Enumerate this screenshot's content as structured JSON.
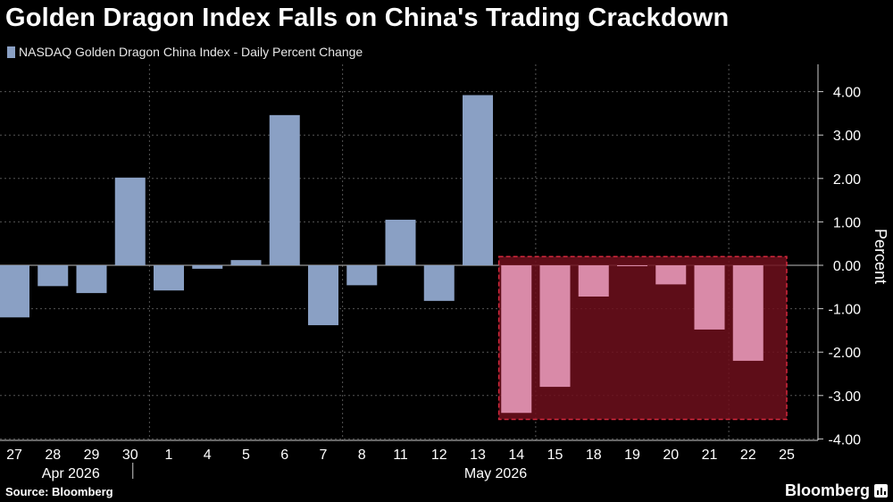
{
  "title": "Golden Dragon Index Falls on China's Trading Crackdown",
  "legend_label": "NASDAQ Golden Dragon China Index - Daily Percent Change",
  "source": "Source: Bloomberg",
  "brand": "Bloomberg",
  "colors": {
    "bar": "#8aa0c4",
    "highlight_bar": "#d98aa8",
    "highlight_fill": "#6e0f1c",
    "highlight_border": "#d4283c",
    "background": "#000000",
    "grid": "#555555"
  },
  "chart_data": {
    "type": "bar",
    "ylabel": "Percent",
    "ylim": [
      -4.0,
      4.5
    ],
    "yticks": [
      4.0,
      3.0,
      2.0,
      1.0,
      0.0,
      -1.0,
      -2.0,
      -3.0,
      -4.0
    ],
    "ytick_labels": [
      "4.00",
      "3.00",
      "2.00",
      "1.00",
      "0.00",
      "-1.00",
      "-2.00",
      "-3.00",
      "-4.00"
    ],
    "grid": true,
    "y_axis_position": "right",
    "categories": [
      "27",
      "28",
      "29",
      "30",
      "1",
      "4",
      "5",
      "6",
      "7",
      "8",
      "11",
      "12",
      "13",
      "14",
      "15",
      "18",
      "19",
      "20",
      "21",
      "22",
      "25"
    ],
    "month_labels": [
      {
        "label": "Apr 2026",
        "category_index": 1
      },
      {
        "label": "May 2026",
        "category_index": 12
      }
    ],
    "series": [
      {
        "values": [
          -1.2,
          -0.48,
          -0.64,
          2.02,
          -0.58,
          -0.08,
          0.12,
          3.46,
          -1.38,
          -0.46,
          1.05,
          -0.82,
          3.92,
          -3.4,
          -2.8,
          -0.72,
          -0.02,
          -0.44,
          -1.48,
          -2.2,
          0.0
        ]
      }
    ],
    "highlight": {
      "from_index": 13,
      "to_index": 20,
      "ymin": -3.55,
      "ymax": 0.2
    }
  }
}
